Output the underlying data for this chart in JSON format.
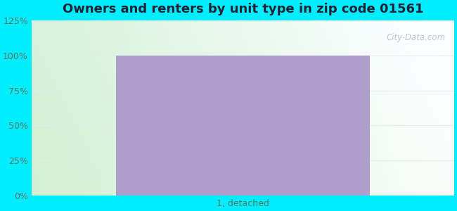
{
  "title": "Owners and renters by unit type in zip code 01561",
  "categories": [
    "1, detached"
  ],
  "values": [
    100
  ],
  "bar_color": "#b09fcc",
  "bar_width": 0.6,
  "ylim": [
    0,
    125
  ],
  "yticks": [
    0,
    25,
    50,
    75,
    100,
    125
  ],
  "ytick_labels": [
    "0%",
    "25%",
    "50%",
    "75%",
    "100%",
    "125%"
  ],
  "title_fontsize": 13,
  "tick_fontsize": 9,
  "outer_bg_color": "#00eeff",
  "bg_left_color": "#d0f0d0",
  "bg_right_color": "#f0faf8",
  "bg_top_color": "#eef8f8",
  "watermark_text": "City-Data.com",
  "watermark_color": "#b0bcc8",
  "tick_color": "#557766",
  "grid_color": "#e0ede8"
}
